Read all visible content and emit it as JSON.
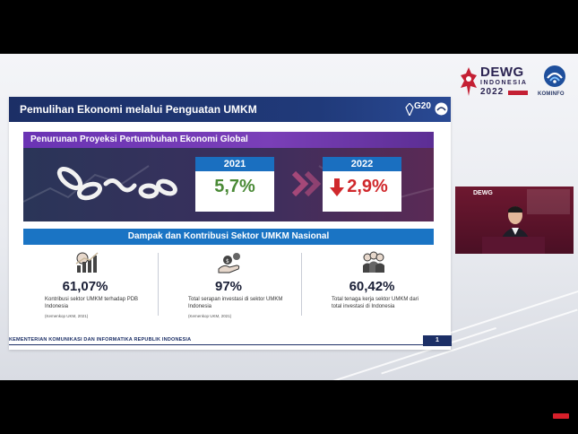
{
  "event": {
    "dewg_name": "DEWG",
    "dewg_country": "INDONESIA",
    "dewg_year": "2022",
    "ministry_logo_text": "KOMINFO"
  },
  "slide": {
    "title": "Pemulihan Ekonomi melalui Penguatan UMKM",
    "g20_label": "G20",
    "projection": {
      "title": "Penurunan Proyeksi Pertumbuhan Ekonomi Global",
      "years": [
        {
          "year": "2021",
          "value": "5,7%"
        },
        {
          "year": "2022",
          "value": "2,9%"
        }
      ]
    },
    "impact": {
      "title": "Dampak dan Kontribusi Sektor UMKM Nasional",
      "stats": [
        {
          "icon": "growth-chart-icon",
          "percent": "61,07%",
          "description": "Kontribusi sektor UMKM terhadap PDB Indonesia",
          "source": "(Kemenkop UKM, 2021)"
        },
        {
          "icon": "investment-icon",
          "percent": "97%",
          "description": "Total serapan investasi di sektor UMKM Indonesia",
          "source": "(Kemenkop UKM, 2021)"
        },
        {
          "icon": "workers-icon",
          "percent": "60,42%",
          "description": "Total tenaga kerja sektor UMKM dari total investasi di Indonesia",
          "source": ""
        }
      ]
    },
    "footer": "KEMENTERIAN KOMUNIKASI DAN INFORMATIKA REPUBLIK INDONESIA",
    "page_number": "1"
  },
  "speaker_video": {
    "backdrop_logo": "DEWG"
  },
  "colors": {
    "header_navy": "#1c2f66",
    "projection_purple": "#6a34b4",
    "impact_blue": "#1a74c4",
    "value_green": "#4a8a36",
    "value_red": "#d0282c"
  }
}
